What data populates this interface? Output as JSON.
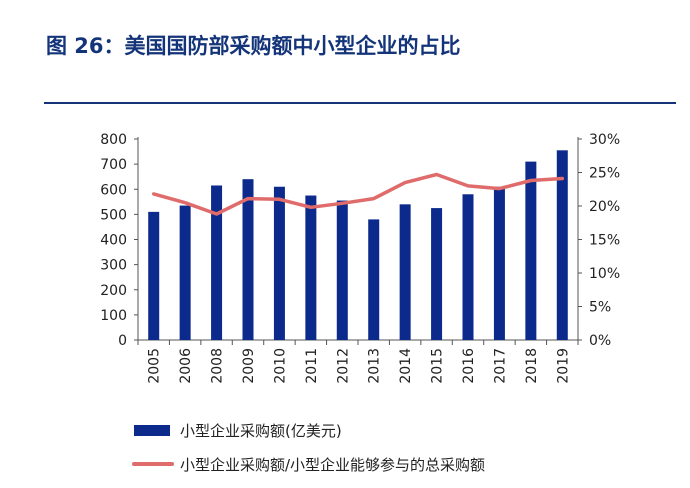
{
  "figure": {
    "title": "图 26：美国国防部采购额中小型企业的占比"
  },
  "colors": {
    "bar": "#0b2a8c",
    "line": "#e06b6b",
    "title": "#14347a"
  },
  "chart_data": {
    "type": "bar",
    "categories": [
      "2005",
      "2006",
      "2008",
      "2009",
      "2010",
      "2011",
      "2012",
      "2013",
      "2014",
      "2015",
      "2016",
      "2017",
      "2018",
      "2019"
    ],
    "series": [
      {
        "name": "小型企业采购额(亿美元)",
        "type": "bar",
        "axis": "left",
        "values": [
          510,
          535,
          615,
          640,
          610,
          575,
          555,
          480,
          540,
          525,
          580,
          610,
          710,
          755
        ]
      },
      {
        "name": "小型企业采购额/小型企业能够参与的总采购额",
        "type": "line",
        "axis": "right",
        "values": [
          21.8,
          20.5,
          18.8,
          21.1,
          21.0,
          19.8,
          20.4,
          21.1,
          23.5,
          24.7,
          23.0,
          22.6,
          23.8,
          24.1
        ]
      }
    ],
    "y_left": {
      "min": 0,
      "max": 800,
      "step": 100,
      "ticks": [
        "0",
        "100",
        "200",
        "300",
        "400",
        "500",
        "600",
        "700",
        "800"
      ]
    },
    "y_right": {
      "min": 0,
      "max": 30,
      "step": 5,
      "ticks": [
        "0%",
        "5%",
        "10%",
        "15%",
        "20%",
        "25%",
        "30%"
      ]
    },
    "legend_position": "bottom-left",
    "grid": false
  }
}
